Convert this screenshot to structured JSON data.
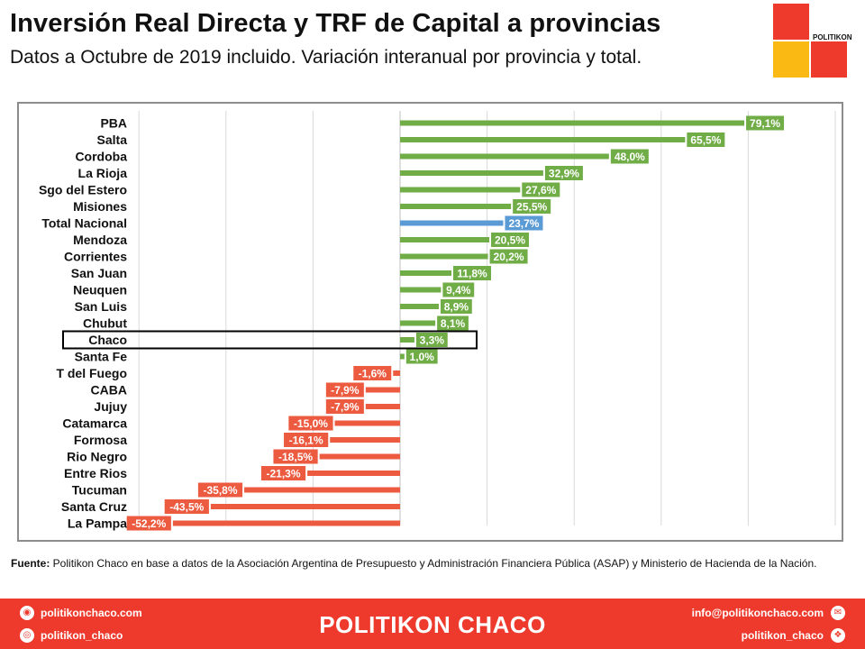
{
  "header": {
    "title": "Inversión Real Directa y TRF de Capital a provincias",
    "subtitle": "Datos a Octubre de 2019 incluido. Variación interanual por provincia y total."
  },
  "logo": {
    "text": "POLITIKON"
  },
  "colors": {
    "positive": "#70ad47",
    "negative": "#ec5a3f",
    "total": "#5b9bd5",
    "brand": "#ee3a2c"
  },
  "chart_data": {
    "type": "bar",
    "orientation": "horizontal",
    "categories": [
      "PBA",
      "Salta",
      "Cordoba",
      "La Rioja",
      "Sgo del Estero",
      "Misiones",
      "Total Nacional",
      "Mendoza",
      "Corrientes",
      "San Juan",
      "Neuquen",
      "San Luis",
      "Chubut",
      "Chaco",
      "Santa Fe",
      "T del Fuego",
      "CABA",
      "Jujuy",
      "Catamarca",
      "Formosa",
      "Rio Negro",
      "Entre Rios",
      "Tucuman",
      "Santa Cruz",
      "La Pampa"
    ],
    "values": [
      79.1,
      65.5,
      48.0,
      32.9,
      27.6,
      25.5,
      23.7,
      20.5,
      20.2,
      11.8,
      9.4,
      8.9,
      8.1,
      3.3,
      1.0,
      -1.6,
      -7.9,
      -7.9,
      -15.0,
      -16.1,
      -18.5,
      -21.3,
      -35.8,
      -43.5,
      -52.2
    ],
    "data_labels": [
      "79,1%",
      "65,5%",
      "48,0%",
      "32,9%",
      "27,6%",
      "25,5%",
      "23,7%",
      "20,5%",
      "20,2%",
      "11,8%",
      "9,4%",
      "8,9%",
      "8,1%",
      "3,3%",
      "1,0%",
      "-1,6%",
      "-7,9%",
      "-7,9%",
      "-15,0%",
      "-16,1%",
      "-18,5%",
      "-21,3%",
      "-35,8%",
      "-43,5%",
      "-52,2%"
    ],
    "highlighted_category": "Chaco",
    "total_category": "Total Nacional",
    "xlim": [
      -60,
      100
    ],
    "grid": true,
    "legend": "none"
  },
  "source": {
    "label": "Fuente:",
    "text": " Politikon Chaco en base a datos de la Asociación Argentina de Presupuesto y Administración Financiera Pública (ASAP) y Ministerio de Hacienda de la Nación."
  },
  "footer": {
    "brand": "POLITIKON CHACO",
    "website": "politikonchaco.com",
    "instagram": "politikon_chaco",
    "email": "info@politikonchaco.com",
    "twitter": "politikon_chaco"
  }
}
